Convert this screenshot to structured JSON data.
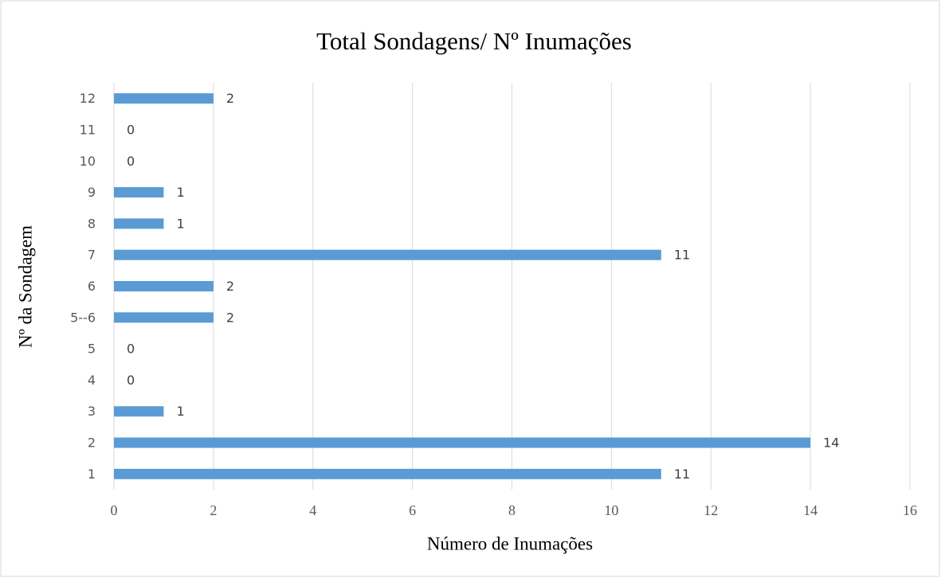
{
  "chart_data": {
    "type": "bar",
    "orientation": "horizontal",
    "title": "Total Sondagens/ Nº Inumações",
    "x_label": "Número de Inumações",
    "y_label": "Nº da Sondagem",
    "categories": [
      "1",
      "2",
      "3",
      "4",
      "5",
      "5--6",
      "6",
      "7",
      "8",
      "9",
      "10",
      "11",
      "12"
    ],
    "values": [
      11,
      14,
      1,
      0,
      0,
      2,
      2,
      11,
      1,
      1,
      0,
      0,
      2
    ],
    "color": "#5b9bd5",
    "xlim": [
      0,
      16
    ],
    "xticks": [
      0,
      2,
      4,
      6,
      8,
      10,
      12,
      14,
      16
    ],
    "grid": true
  }
}
